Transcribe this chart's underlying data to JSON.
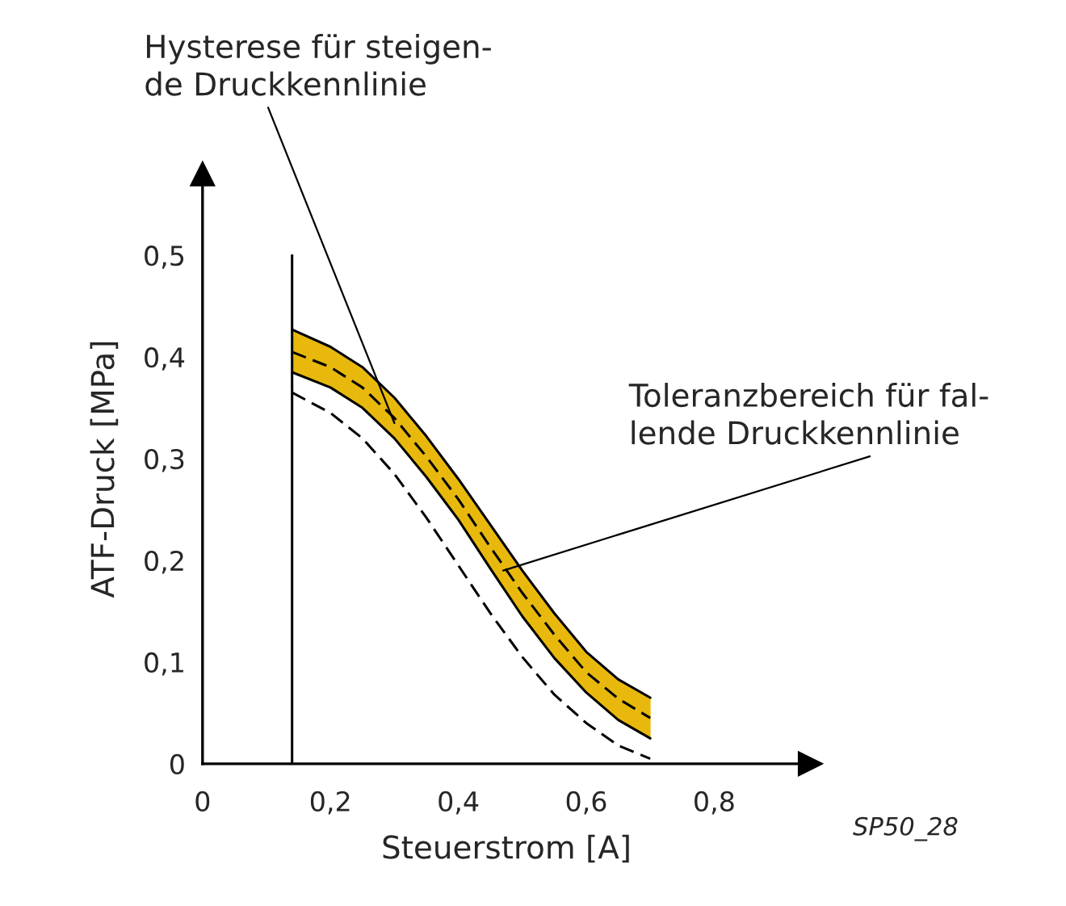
{
  "chart_data": {
    "type": "line",
    "xlabel": "Steuerstrom [A]",
    "ylabel": "ATF-Druck [MPa]",
    "x": [
      0.14,
      0.2,
      0.25,
      0.3,
      0.35,
      0.4,
      0.45,
      0.5,
      0.55,
      0.6,
      0.65,
      0.7
    ],
    "series": [
      {
        "color": "#000000",
        "line_style": "solid",
        "values": [
          0.427,
          0.41,
          0.39,
          0.36,
          0.322,
          0.28,
          0.235,
          0.19,
          0.148,
          0.11,
          0.083,
          0.065
        ]
      },
      {
        "color": "#000000",
        "line_style": "solid",
        "values": [
          0.385,
          0.37,
          0.35,
          0.32,
          0.282,
          0.24,
          0.192,
          0.145,
          0.104,
          0.07,
          0.043,
          0.025
        ]
      },
      {
        "color": "#000000",
        "line_style": "dashed",
        "colors": [
          "#e8b90c",
          "#e8b90c",
          "#e8b90c",
          "#e8b90c",
          "#e8b90c",
          "#e8b90c",
          "#e8b90c",
          "#e8b90c",
          "#e8b90c",
          "#e8b90c",
          "#e8b90c",
          "#e8b90c"
        ],
        "values": [
          0.405,
          0.39,
          0.37,
          0.34,
          0.302,
          0.26,
          0.213,
          0.168,
          0.127,
          0.09,
          0.064,
          0.045
        ],
        "lower": [
          0.385,
          0.37,
          0.35,
          0.32,
          0.282,
          0.24,
          0.192,
          0.145,
          0.104,
          0.07,
          0.043,
          0.025
        ],
        "upper": [
          0.427,
          0.41,
          0.39,
          0.36,
          0.322,
          0.28,
          0.235,
          0.19,
          0.148,
          0.11,
          0.083,
          0.065
        ]
      },
      {
        "color": "#000000",
        "line_style": "dashed",
        "values": [
          0.365,
          0.345,
          0.32,
          0.285,
          0.242,
          0.195,
          0.148,
          0.105,
          0.068,
          0.04,
          0.018,
          0.005
        ]
      }
    ],
    "ref_lines": [
      {
        "axis": "x",
        "value": 0.14,
        "color": "#000000"
      }
    ],
    "xlim": [
      0,
      0.95
    ],
    "ylim": [
      0,
      0.58
    ],
    "xticks": [
      {
        "value": 0,
        "label": "0"
      },
      {
        "value": 0.2,
        "label": "0,2"
      },
      {
        "value": 0.4,
        "label": "0,4"
      },
      {
        "value": 0.6,
        "label": "0,6"
      },
      {
        "value": 0.8,
        "label": "0,8"
      }
    ],
    "yticks": [
      {
        "value": 0,
        "label": "0"
      },
      {
        "value": 0.1,
        "label": "0,1"
      },
      {
        "value": 0.2,
        "label": "0,2"
      },
      {
        "value": 0.3,
        "label": "0,3"
      },
      {
        "value": 0.4,
        "label": "0,4"
      },
      {
        "value": 0.5,
        "label": "0,5"
      }
    ],
    "grid": false,
    "legend": false,
    "annotations": [
      {
        "text": "Hysterese für steigen-\nde Druckkennlinie",
        "x": 0.3,
        "y": 0.335
      },
      {
        "text": "Toleranzbereich für fal-\nlende Druckkennlinie",
        "x": 0.47,
        "y": 0.19
      },
      "SP50_28"
    ]
  }
}
